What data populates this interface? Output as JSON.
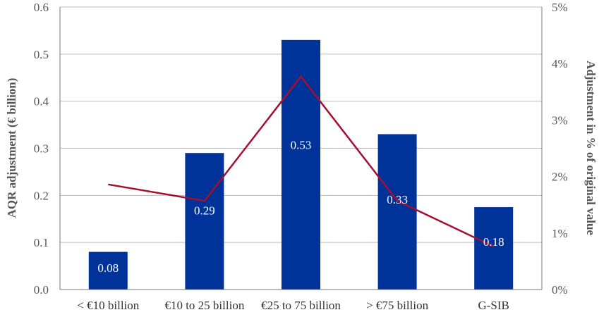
{
  "chart_data": {
    "type": "bar+line",
    "categories": [
      "< €10 billion",
      "€10 to 25 billion",
      "€25 to 75 billion",
      "> €75 billion",
      "G-SIB"
    ],
    "series": [
      {
        "name": "AQR adjustment (€ billion)",
        "type": "bar",
        "axis": "left",
        "values": [
          0.08,
          0.29,
          0.53,
          0.33,
          0.175
        ],
        "labels": [
          "0.08",
          "0.29",
          "0.53",
          "0.33",
          "0.18"
        ],
        "color": "#003399"
      },
      {
        "name": "Adjustment in % of original value",
        "type": "line",
        "axis": "right",
        "values": [
          1.86,
          1.57,
          3.77,
          1.57,
          0.76
        ],
        "color": "#a50f2d"
      }
    ],
    "ylabel": "AQR adjustment (€ billion)",
    "y2label": "Adjustment in % of original value",
    "ylim": [
      0,
      0.6
    ],
    "y2lim": [
      0,
      5
    ],
    "yticks": [
      "0.0",
      "0.1",
      "0.2",
      "0.3",
      "0.4",
      "0.5",
      "0.6"
    ],
    "y2ticks": [
      "0%",
      "1%",
      "2%",
      "3%",
      "4%",
      "5%"
    ],
    "grid": true,
    "legend": "none"
  }
}
